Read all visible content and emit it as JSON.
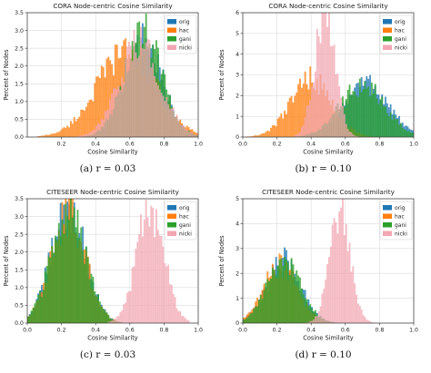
{
  "chart_data": [
    {
      "type": "histogram",
      "title": "CORA Node-centric Cosine Similarity",
      "xlabel": "Cosine Similarity",
      "ylabel": "Percent of Nodes",
      "caption": "(a) r = 0.03",
      "xlim": [
        0.0,
        1.0
      ],
      "ylim": [
        0.0,
        3.5
      ],
      "xticks": [
        "0.2",
        "0.4",
        "0.6",
        "0.8",
        "1.0"
      ],
      "yticks": [
        "0.0",
        "0.5",
        "1.0",
        "1.5",
        "2.0",
        "2.5",
        "3.0",
        "3.5"
      ],
      "grid": true,
      "legend": "top-right",
      "series": [
        {
          "name": "orig",
          "color": "#1f77b4",
          "dist": {
            "mean": 0.68,
            "sd": 0.11,
            "lo": 0.3,
            "hi": 1.0,
            "peak": 2.7
          }
        },
        {
          "name": "hac",
          "color": "#ff7f0e",
          "dist": {
            "mean": 0.58,
            "sd": 0.17,
            "lo": 0.05,
            "hi": 1.0,
            "peak": 2.4
          }
        },
        {
          "name": "gani",
          "color": "#2ca02c",
          "dist": {
            "mean": 0.68,
            "sd": 0.11,
            "lo": 0.3,
            "hi": 1.0,
            "peak": 2.9
          }
        },
        {
          "name": "nicki",
          "color": "#f2a7b2",
          "dist": {
            "mean": 0.66,
            "sd": 0.12,
            "lo": 0.25,
            "hi": 1.0,
            "peak": 2.6
          }
        }
      ]
    },
    {
      "type": "histogram",
      "title": "CORA Node-centric Cosine Similarity",
      "xlabel": "Cosine Similarity",
      "ylabel": "Percent of Nodes",
      "caption": "(b) r = 0.10",
      "xlim": [
        0.0,
        1.0
      ],
      "ylim": [
        0.0,
        6.0
      ],
      "xticks": [
        "0.0",
        "0.2",
        "0.4",
        "0.6",
        "0.8",
        "1.0"
      ],
      "yticks": [
        "0",
        "1",
        "2",
        "3",
        "4",
        "5",
        "6"
      ],
      "grid": true,
      "legend": "top-right",
      "series": [
        {
          "name": "orig",
          "color": "#1f77b4",
          "dist": {
            "mean": 0.72,
            "sd": 0.13,
            "lo": 0.3,
            "hi": 1.0,
            "peak": 2.6
          }
        },
        {
          "name": "hac",
          "color": "#ff7f0e",
          "dist": {
            "mean": 0.4,
            "sd": 0.12,
            "lo": 0.0,
            "hi": 0.85,
            "peak": 2.8
          }
        },
        {
          "name": "gani",
          "color": "#2ca02c",
          "dist": {
            "mean": 0.7,
            "sd": 0.13,
            "lo": 0.3,
            "hi": 1.0,
            "peak": 2.5
          }
        },
        {
          "name": "nicki",
          "color": "#f2a7b2",
          "dist": {
            "mean": 0.48,
            "sd": 0.06,
            "lo": 0.3,
            "hi": 0.7,
            "peak": 5.8
          }
        }
      ]
    },
    {
      "type": "histogram",
      "title": "CITESEER Node-centric Cosine Similarity",
      "xlabel": "Cosine Similarity",
      "ylabel": "Percent of Nodes",
      "caption": "(c) r = 0.03",
      "xlim": [
        0.0,
        1.0
      ],
      "ylim": [
        0.0,
        3.5
      ],
      "xticks": [
        "0.0",
        "0.2",
        "0.4",
        "0.6",
        "0.8",
        "1.0"
      ],
      "yticks": [
        "0.0",
        "0.5",
        "1.0",
        "1.5",
        "2.0",
        "2.5",
        "3.0",
        "3.5"
      ],
      "grid": true,
      "legend": "top-right",
      "series": [
        {
          "name": "orig",
          "color": "#1f77b4",
          "dist": {
            "mean": 0.24,
            "sd": 0.1,
            "lo": 0.0,
            "hi": 0.7,
            "peak": 3.2
          }
        },
        {
          "name": "hac",
          "color": "#ff7f0e",
          "dist": {
            "mean": 0.24,
            "sd": 0.1,
            "lo": 0.0,
            "hi": 0.7,
            "peak": 3.0
          }
        },
        {
          "name": "gani",
          "color": "#2ca02c",
          "dist": {
            "mean": 0.24,
            "sd": 0.1,
            "lo": 0.0,
            "hi": 0.7,
            "peak": 3.1
          }
        },
        {
          "name": "nicki",
          "color": "#f2a7b2",
          "dist": {
            "mean": 0.72,
            "sd": 0.08,
            "lo": 0.4,
            "hi": 0.95,
            "peak": 3.2
          }
        }
      ]
    },
    {
      "type": "histogram",
      "title": "CITESEER Node-centric Cosine Similarity",
      "xlabel": "Cosine Similarity",
      "ylabel": "Percent of Nodes",
      "caption": "(d) r = 0.10",
      "xlim": [
        0.0,
        1.0
      ],
      "ylim": [
        0.0,
        5.0
      ],
      "xticks": [
        "0.0",
        "0.2",
        "0.4",
        "0.6",
        "0.8",
        "1.0"
      ],
      "yticks": [
        "0",
        "1",
        "2",
        "3",
        "4",
        "5"
      ],
      "grid": true,
      "legend": "top-right",
      "series": [
        {
          "name": "orig",
          "color": "#1f77b4",
          "dist": {
            "mean": 0.24,
            "sd": 0.1,
            "lo": 0.0,
            "hi": 0.7,
            "peak": 2.5
          }
        },
        {
          "name": "hac",
          "color": "#ff7f0e",
          "dist": {
            "mean": 0.22,
            "sd": 0.1,
            "lo": 0.0,
            "hi": 0.7,
            "peak": 2.3
          }
        },
        {
          "name": "gani",
          "color": "#2ca02c",
          "dist": {
            "mean": 0.24,
            "sd": 0.1,
            "lo": 0.0,
            "hi": 0.7,
            "peak": 2.4
          }
        },
        {
          "name": "nicki",
          "color": "#f2a7b2",
          "dist": {
            "mean": 0.57,
            "sd": 0.06,
            "lo": 0.35,
            "hi": 0.85,
            "peak": 4.6
          }
        }
      ]
    }
  ]
}
